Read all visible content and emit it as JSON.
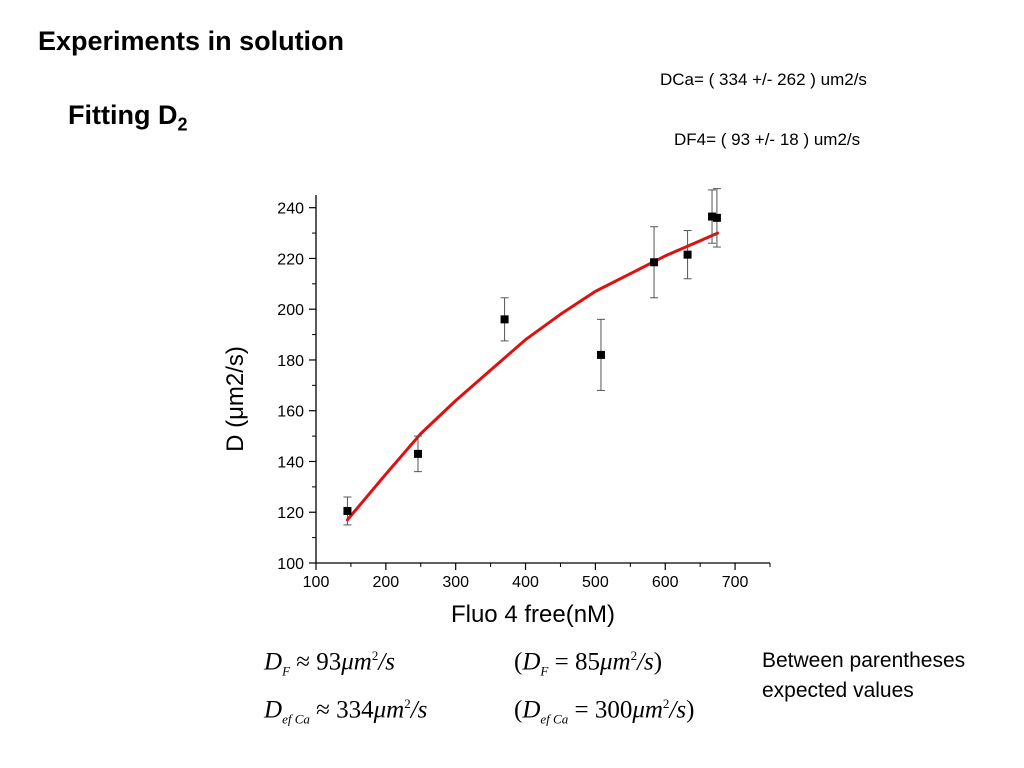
{
  "slide": {
    "title": "Experiments in solution",
    "subtitle_main": "Fitting D",
    "subtitle_sub": "2",
    "result_ca": "DCa= ( 334 +/- 262 ) um2/s",
    "result_f4": "DF4= ( 93 +/- 18 ) um2/s",
    "note_line1": "Between parentheses",
    "note_line2": "expected values"
  },
  "equations": {
    "eq1": {
      "lhs": "D",
      "lhs_sub": "F",
      "op": "≈",
      "value": "93",
      "unit": "μm",
      "unit_sup": "2",
      "unit_den": "/s"
    },
    "eq2": {
      "lhs": "D",
      "lhs_sub": "F",
      "op": "=",
      "value": "85",
      "unit": "μm",
      "unit_sup": "2",
      "unit_den": "/s"
    },
    "eq3": {
      "lhs": "D",
      "lhs_sub": "ef Ca",
      "op": "≈",
      "value": "334",
      "unit": "μm",
      "unit_sup": "2",
      "unit_den": "/s"
    },
    "eq4": {
      "lhs": "D",
      "lhs_sub": "ef Ca",
      "op": "=",
      "value": "300",
      "unit": "μm",
      "unit_sup": "2",
      "unit_den": "/s"
    }
  },
  "chart_data": {
    "type": "scatter",
    "title": "",
    "xlabel": "Fluo 4 free(nM)",
    "ylabel": "D (μm2/s)",
    "xlim": [
      100,
      750
    ],
    "ylim": [
      100,
      245
    ],
    "xticks": [
      100,
      200,
      300,
      400,
      500,
      600,
      700
    ],
    "yticks": [
      100,
      120,
      140,
      160,
      180,
      200,
      220,
      240
    ],
    "series": [
      {
        "points": [
          {
            "x": 145,
            "y": 120.5,
            "err": 5.5
          },
          {
            "x": 246,
            "y": 143,
            "err": 7
          },
          {
            "x": 370,
            "y": 196,
            "err": 8.5
          },
          {
            "x": 508,
            "y": 182,
            "err": 14
          },
          {
            "x": 584,
            "y": 218.5,
            "err": 14
          },
          {
            "x": 632,
            "y": 221.5,
            "err": 9.5
          },
          {
            "x": 667,
            "y": 236.5,
            "err": 10.5
          },
          {
            "x": 674,
            "y": 236,
            "err": 11.5
          }
        ],
        "marker_color": "#000000"
      },
      {
        "type": "line",
        "points": [
          {
            "x": 145,
            "y": 117
          },
          {
            "x": 200,
            "y": 135
          },
          {
            "x": 250,
            "y": 151
          },
          {
            "x": 300,
            "y": 164
          },
          {
            "x": 350,
            "y": 176
          },
          {
            "x": 400,
            "y": 188
          },
          {
            "x": 450,
            "y": 198
          },
          {
            "x": 500,
            "y": 207
          },
          {
            "x": 550,
            "y": 214
          },
          {
            "x": 600,
            "y": 221
          },
          {
            "x": 650,
            "y": 227
          },
          {
            "x": 675,
            "y": 230
          }
        ],
        "color": "#dd1111"
      }
    ]
  }
}
